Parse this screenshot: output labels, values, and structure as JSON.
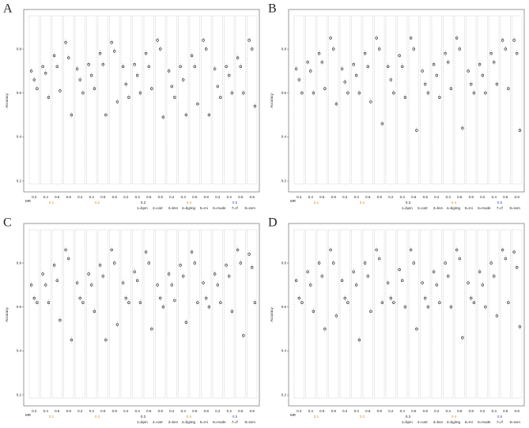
{
  "chart_data": [
    {
      "type": "dot",
      "panel_label": "A",
      "y_label": "Accuracy",
      "x_label": "MR",
      "ylim": [
        0.15,
        0.98
      ],
      "yticks": [
        0.2,
        0.4,
        0.6,
        0.8
      ],
      "categories": [
        "0.2",
        "0.4",
        "0.6",
        "0.8",
        "0.2",
        "0.4",
        "0.6",
        "0.8",
        "0.2",
        "0.4",
        "0.6",
        "0.8",
        "0.2",
        "0.4",
        "0.6",
        "0.8",
        "0.2",
        "0.4",
        "0.6",
        "0.8"
      ],
      "values": [
        [
          0.7,
          0.66,
          0.62
        ],
        [
          0.72,
          0.69,
          0.58
        ],
        [
          0.77,
          0.72,
          0.61
        ],
        [
          0.83,
          0.76,
          0.5
        ],
        [
          0.71,
          0.66,
          0.6
        ],
        [
          0.73,
          0.68,
          0.62
        ],
        [
          0.78,
          0.73,
          0.5
        ],
        [
          0.83,
          0.79,
          0.56
        ],
        [
          0.72,
          0.64,
          0.58
        ],
        [
          0.73,
          0.68,
          0.6
        ],
        [
          0.78,
          0.72,
          0.62
        ],
        [
          0.84,
          0.8,
          0.49
        ],
        [
          0.7,
          0.63,
          0.58
        ],
        [
          0.72,
          0.66,
          0.5
        ],
        [
          0.77,
          0.72,
          0.55
        ],
        [
          0.84,
          0.8,
          0.5
        ],
        [
          0.71,
          0.63,
          0.58
        ],
        [
          0.72,
          0.68,
          0.6
        ],
        [
          0.76,
          0.72,
          0.6
        ],
        [
          0.84,
          0.8,
          0.54
        ]
      ],
      "mr_labels": [
        {
          "label": "0.1",
          "color": "#e08a1e"
        },
        {
          "label": "0.2",
          "color": "#e08a1e"
        },
        {
          "label": "0.3",
          "color": "#222222"
        },
        {
          "label": "0.4",
          "color": "#e08a1e"
        },
        {
          "label": "0.5",
          "color": "#3b4cc0"
        }
      ],
      "method_labels": [
        "1=bpm",
        "2=cart",
        "3=knn",
        "4=bgimg",
        "5=mi",
        "6=mode",
        "7=rf",
        "8=svm"
      ]
    },
    {
      "type": "dot",
      "panel_label": "B",
      "y_label": "Accuracy",
      "x_label": "MR",
      "ylim": [
        0.15,
        0.98
      ],
      "yticks": [
        0.2,
        0.4,
        0.6,
        0.8
      ],
      "categories": [
        "0.2",
        "0.4",
        "0.6",
        "0.8",
        "0.2",
        "0.4",
        "0.6",
        "0.8",
        "0.2",
        "0.4",
        "0.6",
        "0.8",
        "0.2",
        "0.4",
        "0.6",
        "0.8",
        "0.2",
        "0.4",
        "0.6",
        "0.8"
      ],
      "values": [
        [
          0.71,
          0.66,
          0.6
        ],
        [
          0.74,
          0.7,
          0.6
        ],
        [
          0.78,
          0.74,
          0.62
        ],
        [
          0.85,
          0.8,
          0.55
        ],
        [
          0.71,
          0.65,
          0.6
        ],
        [
          0.73,
          0.68,
          0.6
        ],
        [
          0.78,
          0.72,
          0.56
        ],
        [
          0.85,
          0.8,
          0.46
        ],
        [
          0.72,
          0.66,
          0.6
        ],
        [
          0.77,
          0.72,
          0.58
        ],
        [
          0.85,
          0.8,
          0.43
        ],
        [
          0.7,
          0.64,
          0.6
        ],
        [
          0.73,
          0.68,
          0.58
        ],
        [
          0.78,
          0.74,
          0.62
        ],
        [
          0.85,
          0.8,
          0.44
        ],
        [
          0.7,
          0.64,
          0.6
        ],
        [
          0.73,
          0.68,
          0.6
        ],
        [
          0.78,
          0.74,
          0.64
        ],
        [
          0.84,
          0.8,
          0.62
        ],
        [
          0.84,
          0.78,
          0.43
        ]
      ],
      "mr_labels": [
        {
          "label": "0.1",
          "color": "#e08a1e"
        },
        {
          "label": "0.2",
          "color": "#e08a1e"
        },
        {
          "label": "0.3",
          "color": "#222222"
        },
        {
          "label": "0.4",
          "color": "#e08a1e"
        },
        {
          "label": "0.5",
          "color": "#3b4cc0"
        }
      ],
      "method_labels": [
        "1=bpm",
        "2=cart",
        "3=knn",
        "4=bgimg",
        "5=mi",
        "6=mode",
        "7=rf",
        "8=svm"
      ]
    },
    {
      "type": "dot",
      "panel_label": "C",
      "y_label": "Accuracy",
      "x_label": "MR",
      "ylim": [
        0.15,
        0.98
      ],
      "yticks": [
        0.2,
        0.4,
        0.6,
        0.8
      ],
      "categories": [
        "0.2",
        "0.4",
        "0.6",
        "0.8",
        "0.2",
        "0.4",
        "0.6",
        "0.8",
        "0.2",
        "0.4",
        "0.6",
        "0.8",
        "0.2",
        "0.4",
        "0.6",
        "0.8",
        "0.2",
        "0.4",
        "0.6",
        "0.8"
      ],
      "values": [
        [
          0.7,
          0.64,
          0.62
        ],
        [
          0.75,
          0.7,
          0.62
        ],
        [
          0.79,
          0.72,
          0.54
        ],
        [
          0.86,
          0.82,
          0.45
        ],
        [
          0.71,
          0.64,
          0.62
        ],
        [
          0.75,
          0.7,
          0.58
        ],
        [
          0.79,
          0.74,
          0.45
        ],
        [
          0.86,
          0.8,
          0.52
        ],
        [
          0.71,
          0.64,
          0.62
        ],
        [
          0.76,
          0.72,
          0.62
        ],
        [
          0.85,
          0.8,
          0.5
        ],
        [
          0.7,
          0.64,
          0.6
        ],
        [
          0.75,
          0.7,
          0.63
        ],
        [
          0.79,
          0.74,
          0.53
        ],
        [
          0.85,
          0.8,
          0.62
        ],
        [
          0.71,
          0.64,
          0.6
        ],
        [
          0.75,
          0.7,
          0.62
        ],
        [
          0.79,
          0.74,
          0.58
        ],
        [
          0.86,
          0.8,
          0.47
        ],
        [
          0.84,
          0.78,
          0.62
        ]
      ],
      "mr_labels": [
        {
          "label": "0.1",
          "color": "#e08a1e"
        },
        {
          "label": "0.2",
          "color": "#e08a1e"
        },
        {
          "label": "0.3",
          "color": "#222222"
        },
        {
          "label": "0.4",
          "color": "#e08a1e"
        },
        {
          "label": "0.5",
          "color": "#3b4cc0"
        }
      ],
      "method_labels": [
        "1=bpm",
        "2=cart",
        "3=knn",
        "4=bgimg",
        "5=mi",
        "6=mode",
        "7=rf",
        "8=svm"
      ]
    },
    {
      "type": "dot",
      "panel_label": "D",
      "y_label": "Accuracy",
      "x_label": "MR",
      "ylim": [
        0.15,
        0.98
      ],
      "yticks": [
        0.2,
        0.4,
        0.6,
        0.8
      ],
      "categories": [
        "0.2",
        "0.4",
        "0.6",
        "0.8",
        "0.2",
        "0.4",
        "0.6",
        "0.8",
        "0.2",
        "0.4",
        "0.6",
        "0.8",
        "0.2",
        "0.4",
        "0.6",
        "0.8",
        "0.2",
        "0.4",
        "0.6",
        "0.8"
      ],
      "values": [
        [
          0.72,
          0.64,
          0.62
        ],
        [
          0.76,
          0.7,
          0.58
        ],
        [
          0.8,
          0.74,
          0.5
        ],
        [
          0.86,
          0.8,
          0.56
        ],
        [
          0.72,
          0.64,
          0.62
        ],
        [
          0.76,
          0.7,
          0.45
        ],
        [
          0.8,
          0.74,
          0.58
        ],
        [
          0.86,
          0.82,
          0.62
        ],
        [
          0.71,
          0.64,
          0.62
        ],
        [
          0.77,
          0.72,
          0.6
        ],
        [
          0.86,
          0.8,
          0.5
        ],
        [
          0.71,
          0.64,
          0.6
        ],
        [
          0.76,
          0.7,
          0.62
        ],
        [
          0.8,
          0.74,
          0.6
        ],
        [
          0.86,
          0.82,
          0.46
        ],
        [
          0.71,
          0.64,
          0.62
        ],
        [
          0.76,
          0.7,
          0.6
        ],
        [
          0.8,
          0.74,
          0.56
        ],
        [
          0.86,
          0.82,
          0.62
        ],
        [
          0.85,
          0.78,
          0.51
        ]
      ],
      "mr_labels": [
        {
          "label": "0.1",
          "color": "#e08a1e"
        },
        {
          "label": "0.2",
          "color": "#e08a1e"
        },
        {
          "label": "0.3",
          "color": "#222222"
        },
        {
          "label": "0.4",
          "color": "#e08a1e"
        },
        {
          "label": "0.5",
          "color": "#3b4cc0"
        }
      ],
      "method_labels": [
        "1=bpm",
        "2=cart",
        "3=knn",
        "4=bgimg",
        "5=mi",
        "6=mode",
        "7=rf",
        "8=svm"
      ]
    }
  ]
}
